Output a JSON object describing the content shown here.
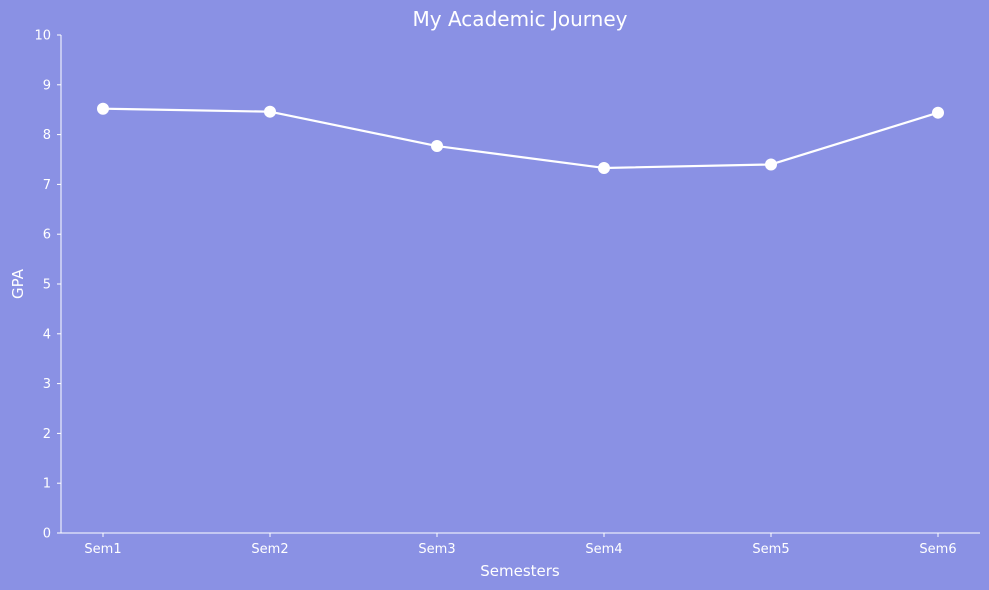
{
  "chart_data": {
    "type": "line",
    "title": "My Academic Journey",
    "xlabel": "Semesters",
    "ylabel": "GPA",
    "categories": [
      "Sem1",
      "Sem2",
      "Sem3",
      "Sem4",
      "Sem5",
      "Sem6"
    ],
    "values": [
      8.52,
      8.46,
      7.77,
      7.33,
      7.4,
      8.44
    ],
    "ylim": [
      0,
      10
    ],
    "yticks": [
      0,
      1,
      2,
      3,
      4,
      5,
      6,
      7,
      8,
      9,
      10
    ],
    "grid": false,
    "legend": "none",
    "colors": {
      "background": "#8a91e4",
      "line": "#ffffff",
      "text": "#ffffff"
    }
  }
}
